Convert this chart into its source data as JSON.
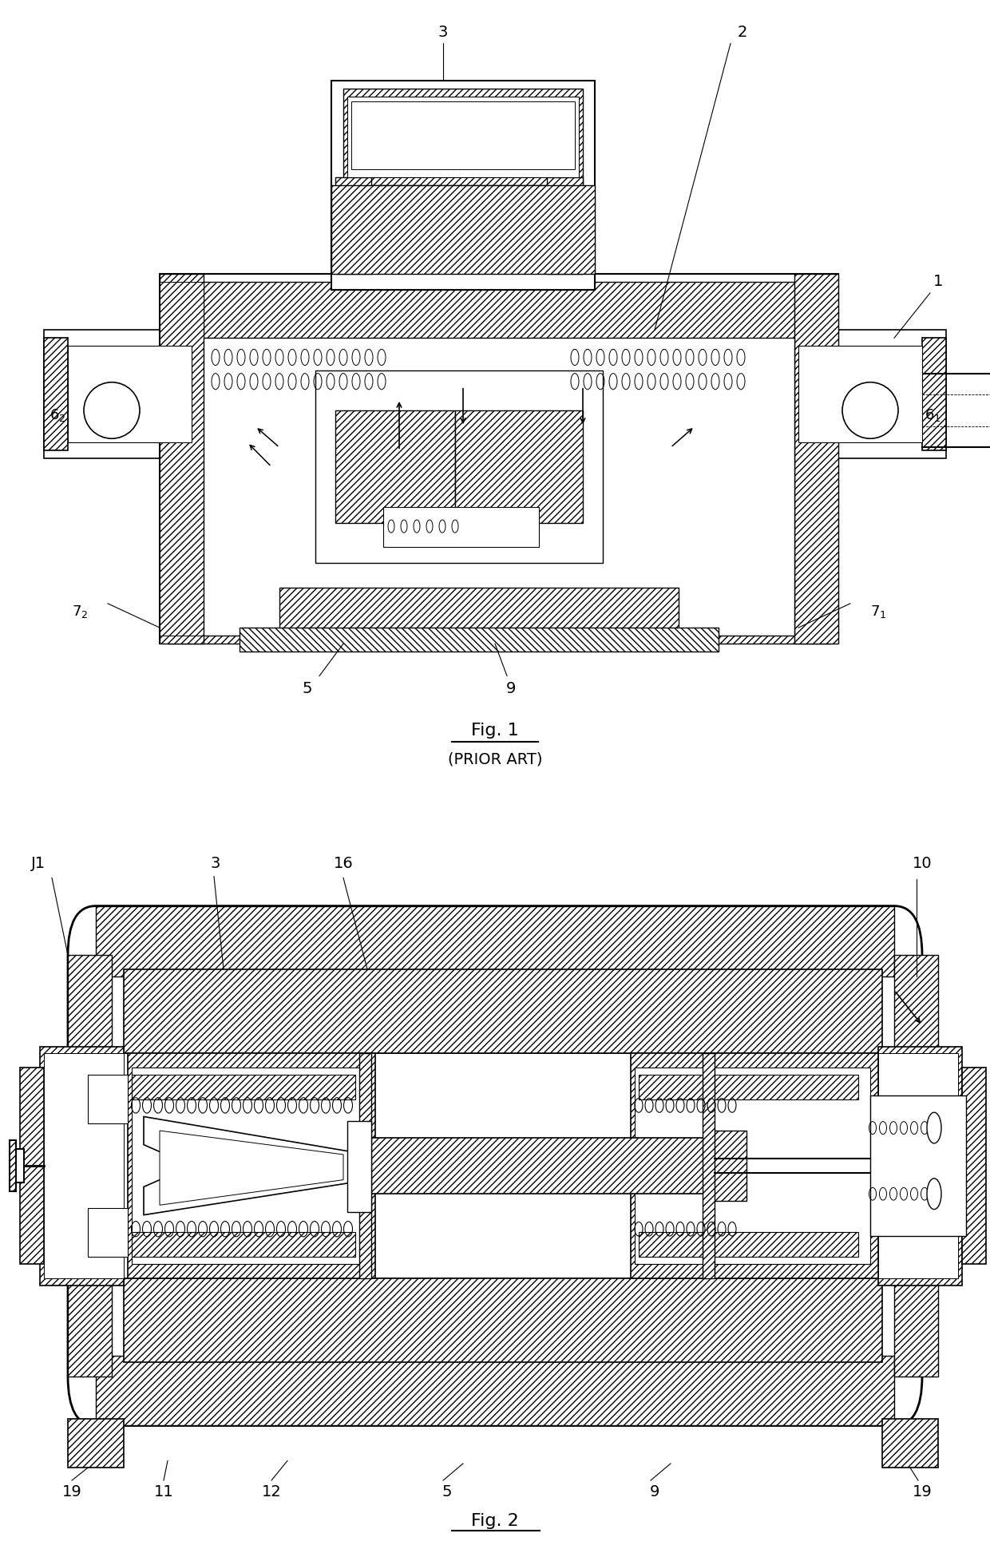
{
  "bg_color": "#ffffff",
  "fig1_title": "Fig. 1",
  "fig1_subtitle": "(PRIOR ART)",
  "fig2_title": "Fig. 2",
  "lw": 1.2,
  "hatch_density": "////"
}
